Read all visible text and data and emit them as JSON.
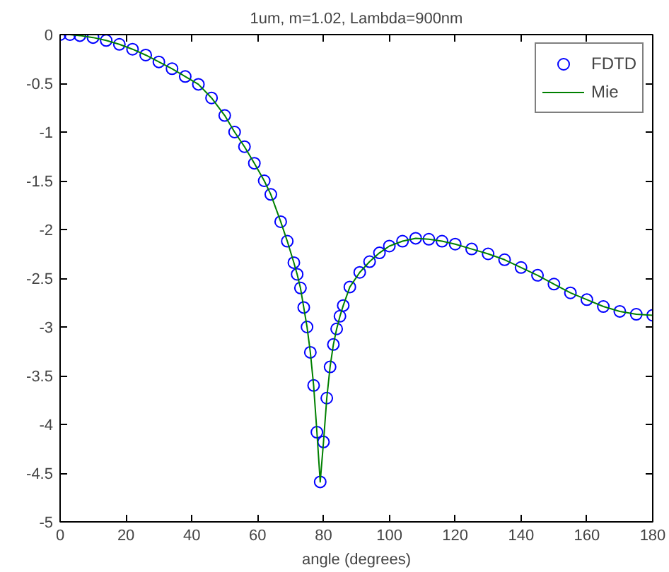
{
  "chart_data": {
    "type": "scatter",
    "title": "1um, m=1.02, Lambda=900nm",
    "xlabel": "angle (degrees)",
    "x": [
      0,
      3,
      6,
      10,
      14,
      18,
      22,
      26,
      30,
      34,
      38,
      42,
      46,
      50,
      53,
      56,
      59,
      62,
      64,
      67,
      69,
      71,
      72,
      73,
      74,
      75,
      76,
      77,
      78,
      79,
      80,
      81,
      82,
      83,
      84,
      85,
      86,
      88,
      91,
      94,
      97,
      100,
      104,
      108,
      112,
      116,
      120,
      125,
      130,
      135,
      140,
      145,
      150,
      155,
      160,
      165,
      170,
      175,
      180
    ],
    "series": [
      {
        "name": "FDTD",
        "marker": "circle",
        "color": "#0000ff",
        "values": [
          0,
          0,
          -0.01,
          -0.03,
          -0.06,
          -0.1,
          -0.15,
          -0.21,
          -0.28,
          -0.35,
          -0.43,
          -0.51,
          -0.65,
          -0.83,
          -1.0,
          -1.15,
          -1.32,
          -1.5,
          -1.64,
          -1.92,
          -2.12,
          -2.34,
          -2.46,
          -2.6,
          -2.8,
          -3.0,
          -3.26,
          -3.6,
          -4.08,
          -4.59,
          -4.18,
          -3.73,
          -3.41,
          -3.18,
          -3.02,
          -2.89,
          -2.78,
          -2.59,
          -2.44,
          -2.33,
          -2.24,
          -2.17,
          -2.12,
          -2.09,
          -2.1,
          -2.12,
          -2.15,
          -2.2,
          -2.25,
          -2.31,
          -2.39,
          -2.47,
          -2.56,
          -2.65,
          -2.72,
          -2.79,
          -2.84,
          -2.87,
          -2.88
        ]
      },
      {
        "name": "Mie",
        "type": "line",
        "line_style": "solid",
        "color": "#008000",
        "values": [
          null,
          0,
          -0.01,
          -0.03,
          -0.06,
          -0.1,
          -0.15,
          -0.21,
          -0.28,
          -0.35,
          -0.43,
          -0.51,
          -0.65,
          -0.83,
          -1.0,
          -1.15,
          -1.32,
          -1.5,
          -1.64,
          -1.92,
          -2.12,
          -2.34,
          -2.46,
          -2.6,
          -2.8,
          -3.0,
          -3.26,
          -3.6,
          -4.08,
          -4.59,
          -4.18,
          -3.73,
          -3.41,
          -3.18,
          -3.02,
          -2.89,
          -2.78,
          -2.59,
          -2.44,
          -2.33,
          -2.24,
          -2.17,
          -2.12,
          -2.09,
          -2.1,
          -2.12,
          -2.15,
          -2.2,
          -2.25,
          -2.31,
          -2.39,
          -2.47,
          -2.56,
          -2.65,
          -2.72,
          -2.79,
          -2.84,
          -2.87,
          -2.88
        ]
      }
    ],
    "xlim": [
      0,
      180
    ],
    "xticks": [
      0,
      20,
      40,
      60,
      80,
      100,
      120,
      140,
      160,
      180
    ],
    "ylim": [
      -5,
      0
    ],
    "yticks": [
      -5,
      -4.5,
      -4,
      -3.5,
      -3,
      -2.5,
      -2,
      -1.5,
      -1,
      -0.5,
      0
    ],
    "grid": false,
    "legend": "top right"
  }
}
